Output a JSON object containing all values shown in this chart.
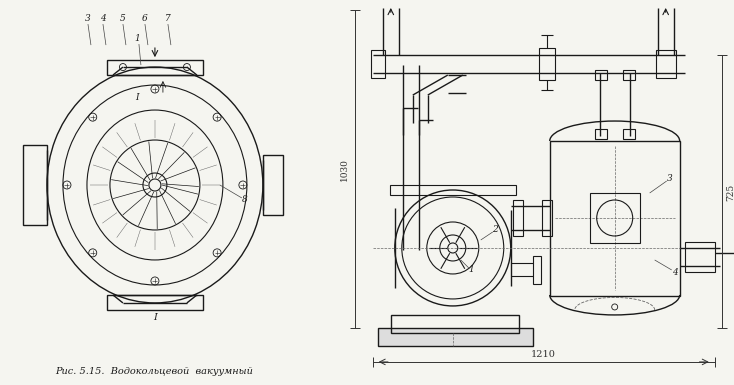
{
  "bg_color": "#f5f5f0",
  "line_color": "#1a1a1a",
  "title_text": "Рис. 5.15.  Водокольцевой  вакуумный",
  "dim_1030": "1030",
  "dim_725": "725",
  "dim_1210": "1210",
  "figsize": [
    7.34,
    3.85
  ],
  "dpi": 100
}
